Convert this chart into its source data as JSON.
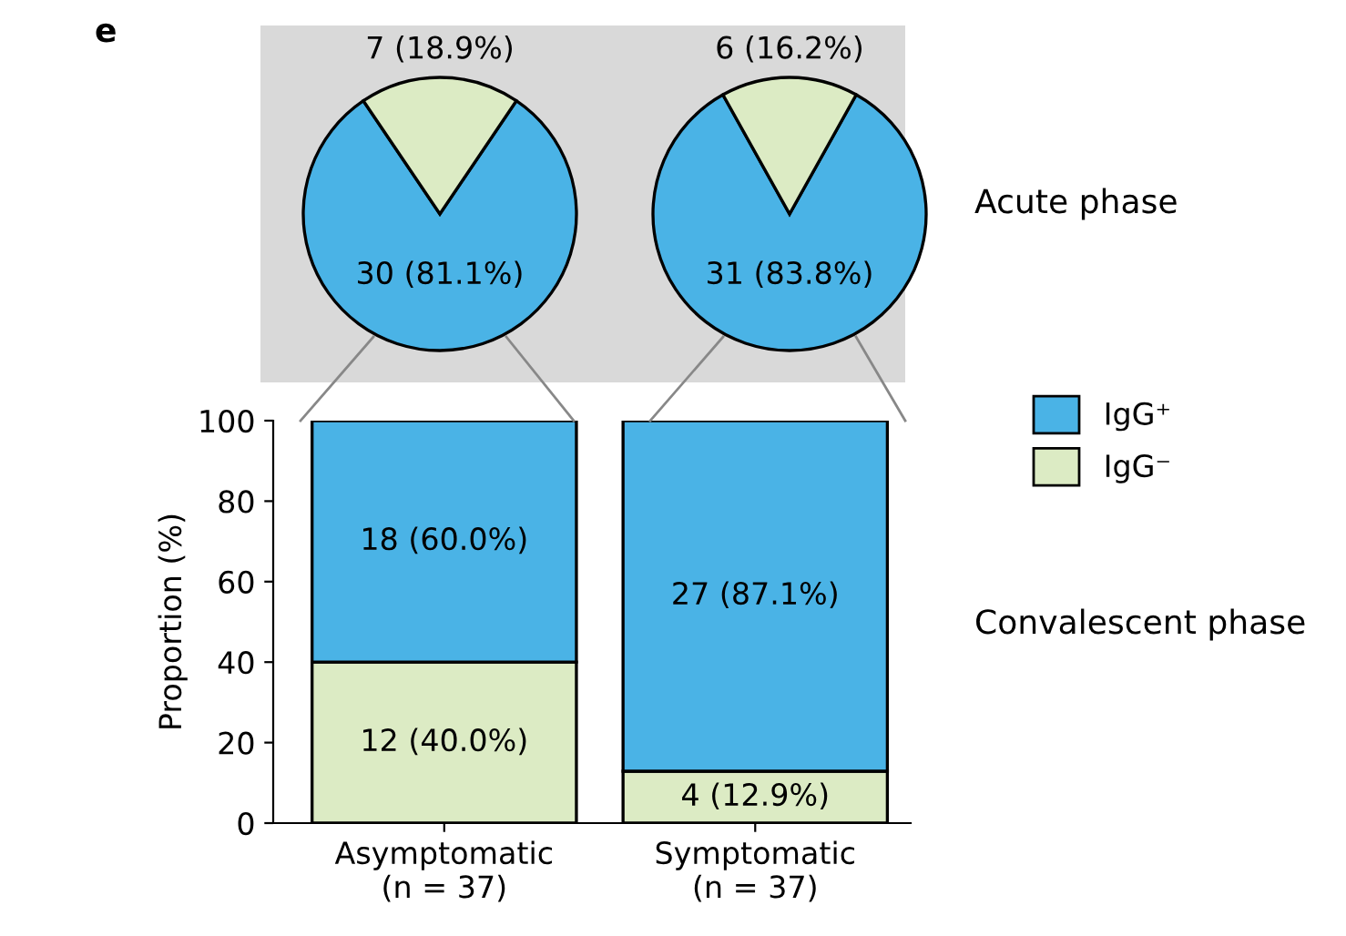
{
  "chart_data": [
    {
      "type": "pie",
      "categories": [
        null,
        null
      ],
      "values": [
        30,
        7
      ],
      "colors": [
        "#4ab3e6",
        "#dcebc4"
      ],
      "value_labels": [
        "30 (81.1%)",
        "7 (18.9%)"
      ],
      "annotations": [
        "e"
      ]
    },
    {
      "type": "pie",
      "categories": [
        null,
        null
      ],
      "values": [
        31,
        6
      ],
      "colors": [
        "#4ab3e6",
        "#dcebc4"
      ],
      "value_labels": [
        "31 (83.8%)",
        "6 (16.2%)"
      ],
      "annotations": [
        "Acute phase"
      ]
    },
    {
      "type": "bar",
      "stacked": true,
      "categories": [
        "Asymptomatic\n(n = 37)",
        "Symptomatic\n(n = 37)"
      ],
      "ylabel": "Proportion (%)",
      "ylim": [
        0,
        100
      ],
      "yticks": [
        0,
        20,
        40,
        60,
        80,
        100
      ],
      "legend": "right",
      "series": [
        {
          "name": "IgG⁻",
          "color": "#dcebc4",
          "values": [
            40.0,
            12.9
          ],
          "value_labels": [
            "12 (40.0%)",
            "4 (12.9%)"
          ]
        },
        {
          "name": "IgG⁺",
          "color": "#4ab3e6",
          "values": [
            60.0,
            87.1
          ],
          "value_labels": [
            "18 (60.0%)",
            "27 (87.1%)"
          ]
        }
      ],
      "annotations": [
        "Convalescent phase"
      ]
    }
  ]
}
